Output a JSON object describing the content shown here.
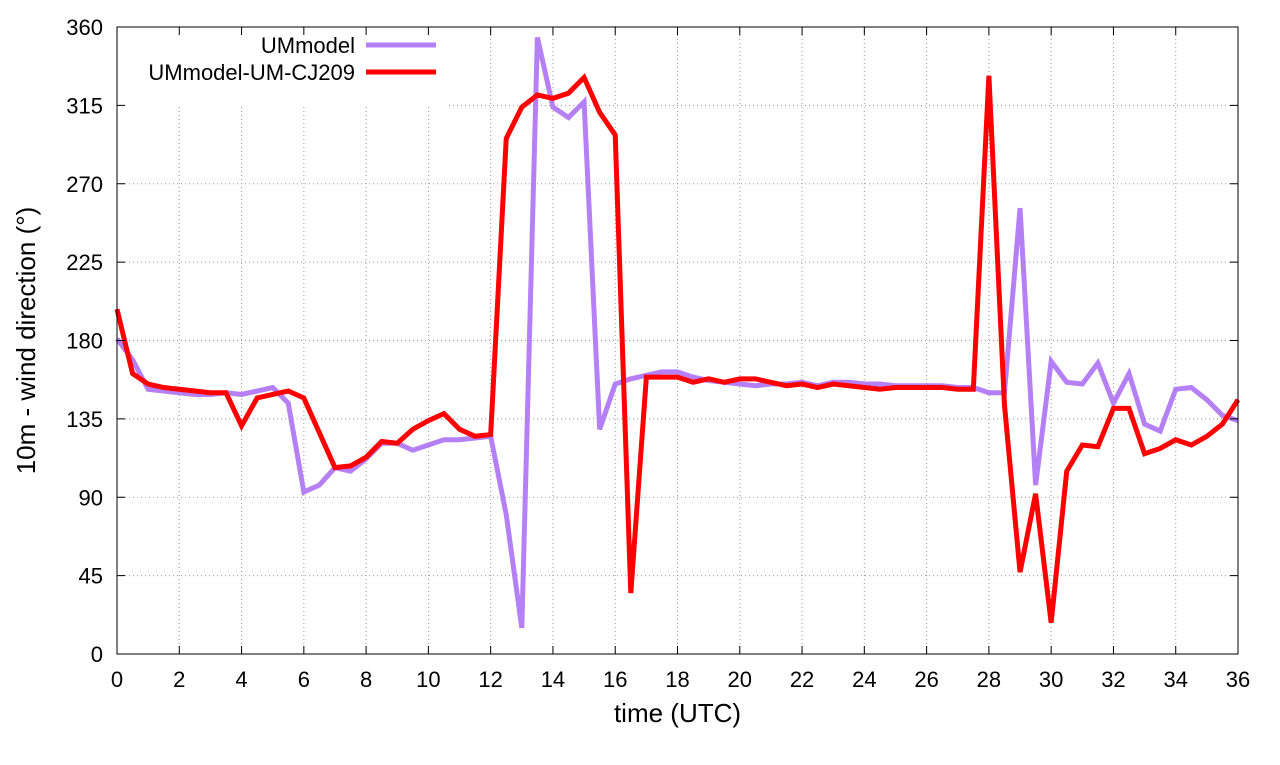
{
  "chart_data": {
    "type": "line",
    "title": "",
    "xlabel": "time (UTC)",
    "ylabel": "10m - wind direction (°)",
    "xlim": [
      0,
      36
    ],
    "ylim": [
      0,
      360
    ],
    "xticks": [
      0,
      2,
      4,
      6,
      8,
      10,
      12,
      14,
      16,
      18,
      20,
      22,
      24,
      26,
      28,
      30,
      32,
      34,
      36
    ],
    "yticks": [
      0,
      45,
      90,
      135,
      180,
      225,
      270,
      315,
      360
    ],
    "grid": true,
    "legend_position": "top-left",
    "series": [
      {
        "name": "UMmodel",
        "color": "#b57ff6",
        "x": [
          0,
          0.5,
          1,
          1.5,
          2,
          2.5,
          3,
          3.5,
          4,
          4.5,
          5,
          5.5,
          6,
          6.5,
          7,
          7.5,
          8,
          8.5,
          9,
          9.5,
          10,
          10.5,
          11,
          11.5,
          12,
          12.5,
          13,
          13.5,
          14,
          14.5,
          15,
          15.5,
          16,
          16.5,
          17,
          17.5,
          18,
          18.5,
          19,
          19.5,
          20,
          20.5,
          21,
          21.5,
          22,
          22.5,
          23,
          23.5,
          24,
          24.5,
          25,
          25.5,
          26,
          26.5,
          27,
          27.5,
          28,
          28.5,
          29,
          29.5,
          30,
          30.5,
          31,
          31.5,
          32,
          32.5,
          33,
          33.5,
          34,
          34.5,
          35,
          35.5,
          36
        ],
        "values": [
          181,
          169,
          152,
          151,
          150,
          149,
          149,
          150,
          149,
          151,
          153,
          144,
          93,
          97,
          107,
          105,
          112,
          121,
          121,
          117,
          120,
          123,
          123,
          124,
          125,
          80,
          15,
          354,
          314,
          308,
          317,
          129,
          155,
          158,
          160,
          162,
          162,
          159,
          157,
          156,
          155,
          154,
          155,
          155,
          156,
          154,
          156,
          156,
          155,
          155,
          154,
          154,
          154,
          154,
          153,
          153,
          150,
          150,
          256,
          97,
          168,
          156,
          155,
          167,
          144,
          161,
          132,
          128,
          152,
          153,
          146,
          137,
          134
        ]
      },
      {
        "name": "UMmodel-UM-CJ209",
        "color": "#ff0000",
        "x": [
          0,
          0.5,
          1,
          1.5,
          2,
          2.5,
          3,
          3.5,
          4,
          4.5,
          5,
          5.5,
          6,
          6.5,
          7,
          7.5,
          8,
          8.5,
          9,
          9.5,
          10,
          10.5,
          11,
          11.5,
          12,
          12.5,
          13,
          13.5,
          14,
          14.5,
          15,
          15.5,
          16,
          16.5,
          17,
          17.5,
          18,
          18.5,
          19,
          19.5,
          20,
          20.5,
          21,
          21.5,
          22,
          22.5,
          23,
          23.5,
          24,
          24.5,
          25,
          25.5,
          26,
          26.5,
          27,
          27.5,
          28,
          28.5,
          29,
          29.5,
          30,
          30.5,
          31,
          31.5,
          32,
          32.5,
          33,
          33.5,
          34,
          34.5,
          35,
          35.5,
          36
        ],
        "values": [
          198,
          161,
          155,
          153,
          152,
          151,
          150,
          150,
          131,
          147,
          149,
          151,
          147,
          127,
          107,
          108,
          113,
          122,
          121,
          129,
          134,
          138,
          129,
          125,
          126,
          296,
          314,
          321,
          319,
          322,
          331,
          311,
          298,
          35,
          159,
          159,
          159,
          156,
          158,
          156,
          158,
          158,
          156,
          154,
          155,
          153,
          155,
          154,
          153,
          152,
          153,
          153,
          153,
          153,
          152,
          152,
          332,
          143,
          47,
          92,
          18,
          105,
          120,
          119,
          141,
          141,
          115,
          118,
          123,
          120,
          125,
          132,
          146
        ]
      }
    ]
  }
}
